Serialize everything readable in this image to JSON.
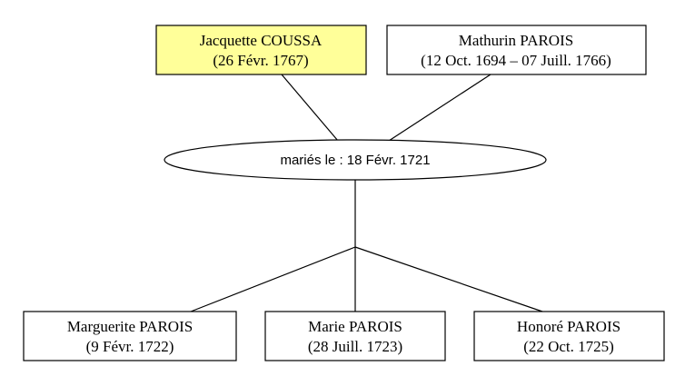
{
  "parents": [
    {
      "name": "Jacquette COUSSA",
      "dates": "(26 Févr. 1767)"
    },
    {
      "name": "Mathurin PAROIS",
      "dates": "(12 Oct. 1694 – 07 Juill. 1766)"
    }
  ],
  "marriage": "mariés le : 18 Févr. 1721",
  "children": [
    {
      "name": "Marguerite PAROIS",
      "dates": "(9 Févr. 1722)"
    },
    {
      "name": "Marie PAROIS",
      "dates": "(28 Juill. 1723)"
    },
    {
      "name": "Honoré PAROIS",
      "dates": "(22 Oct. 1725)"
    }
  ]
}
